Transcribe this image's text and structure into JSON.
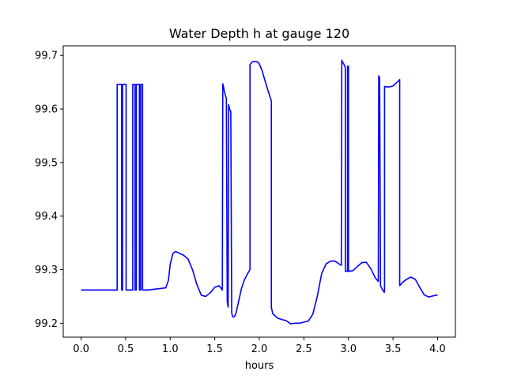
{
  "chart_data": {
    "type": "line",
    "title": "Water Depth h at gauge 120",
    "xlabel": "hours",
    "ylabel": "",
    "xlim": [
      -0.2,
      4.2
    ],
    "ylim": [
      99.174,
      99.718
    ],
    "xticks": [
      0.0,
      0.5,
      1.0,
      1.5,
      2.0,
      2.5,
      3.0,
      3.5,
      4.0
    ],
    "xtick_labels": [
      "0.0",
      "0.5",
      "1.0",
      "1.5",
      "2.0",
      "2.5",
      "3.0",
      "3.5",
      "4.0"
    ],
    "yticks": [
      99.2,
      99.3,
      99.4,
      99.5,
      99.6,
      99.7
    ],
    "ytick_labels": [
      "99.2",
      "99.3",
      "99.4",
      "99.5",
      "99.6",
      "99.7"
    ],
    "grid": false,
    "legend": "none",
    "colors": {
      "line": "#0000ff",
      "axes": "#000000",
      "background": "#ffffff"
    },
    "series": [
      {
        "x": [
          0.0,
          0.2,
          0.4,
          0.405,
          0.405,
          0.455,
          0.455,
          0.465,
          0.465,
          0.505,
          0.505,
          0.58,
          0.58,
          0.605,
          0.605,
          0.62,
          0.62,
          0.655,
          0.655,
          0.67,
          0.67,
          0.69,
          0.69,
          0.75,
          0.85,
          0.95,
          0.98,
          1.0,
          1.03,
          1.06,
          1.1,
          1.15,
          1.2,
          1.25,
          1.3,
          1.35,
          1.4,
          1.45,
          1.5,
          1.55,
          1.585,
          1.59,
          1.6,
          1.605,
          1.62,
          1.63,
          1.64,
          1.645,
          1.65,
          1.655,
          1.66,
          1.67,
          1.68,
          1.69,
          1.7,
          1.72,
          1.74,
          1.76,
          1.78,
          1.8,
          1.83,
          1.86,
          1.895,
          1.895,
          1.92,
          1.95,
          1.98,
          2.0,
          2.03,
          2.06,
          2.1,
          2.135,
          2.135,
          2.15,
          2.2,
          2.25,
          2.3,
          2.35,
          2.4,
          2.45,
          2.5,
          2.55,
          2.6,
          2.65,
          2.7,
          2.75,
          2.8,
          2.85,
          2.9,
          2.92,
          2.925,
          2.93,
          2.96,
          2.965,
          2.965,
          2.99,
          2.99,
          3.0,
          3.0,
          3.05,
          3.1,
          3.15,
          3.2,
          3.25,
          3.3,
          3.335,
          3.34,
          3.35,
          3.36,
          3.38,
          3.4,
          3.405,
          3.405,
          3.45,
          3.5,
          3.54,
          3.56,
          3.575,
          3.575,
          3.6,
          3.65,
          3.7,
          3.75,
          3.8,
          3.85,
          3.9,
          3.95,
          4.0
        ],
        "y": [
          99.262,
          99.262,
          99.262,
          99.262,
          99.646,
          99.646,
          99.262,
          99.262,
          99.646,
          99.646,
          99.262,
          99.262,
          99.646,
          99.646,
          99.262,
          99.262,
          99.646,
          99.646,
          99.262,
          99.262,
          99.646,
          99.646,
          99.262,
          99.262,
          99.264,
          99.266,
          99.28,
          99.31,
          99.33,
          99.334,
          99.331,
          99.327,
          99.32,
          99.3,
          99.272,
          99.252,
          99.25,
          99.257,
          99.267,
          99.27,
          99.262,
          99.647,
          99.64,
          99.635,
          99.625,
          99.62,
          99.24,
          99.235,
          99.23,
          99.608,
          99.605,
          99.598,
          99.595,
          99.22,
          99.212,
          99.212,
          99.22,
          99.235,
          99.25,
          99.265,
          99.28,
          99.29,
          99.3,
          99.683,
          99.688,
          99.689,
          99.688,
          99.684,
          99.672,
          99.655,
          99.633,
          99.615,
          99.23,
          99.218,
          99.21,
          99.207,
          99.205,
          99.199,
          99.2,
          99.2,
          99.202,
          99.204,
          99.217,
          99.25,
          99.293,
          99.311,
          99.316,
          99.316,
          99.31,
          99.308,
          99.691,
          99.689,
          99.68,
          99.675,
          99.297,
          99.297,
          99.68,
          99.68,
          99.297,
          99.298,
          99.306,
          99.313,
          99.314,
          99.302,
          99.285,
          99.278,
          99.662,
          99.658,
          99.27,
          99.263,
          99.258,
          99.258,
          99.642,
          99.641,
          99.643,
          99.649,
          99.652,
          99.655,
          99.27,
          99.275,
          99.282,
          99.286,
          99.282,
          99.267,
          99.253,
          99.249,
          99.251,
          99.253
        ]
      }
    ]
  }
}
